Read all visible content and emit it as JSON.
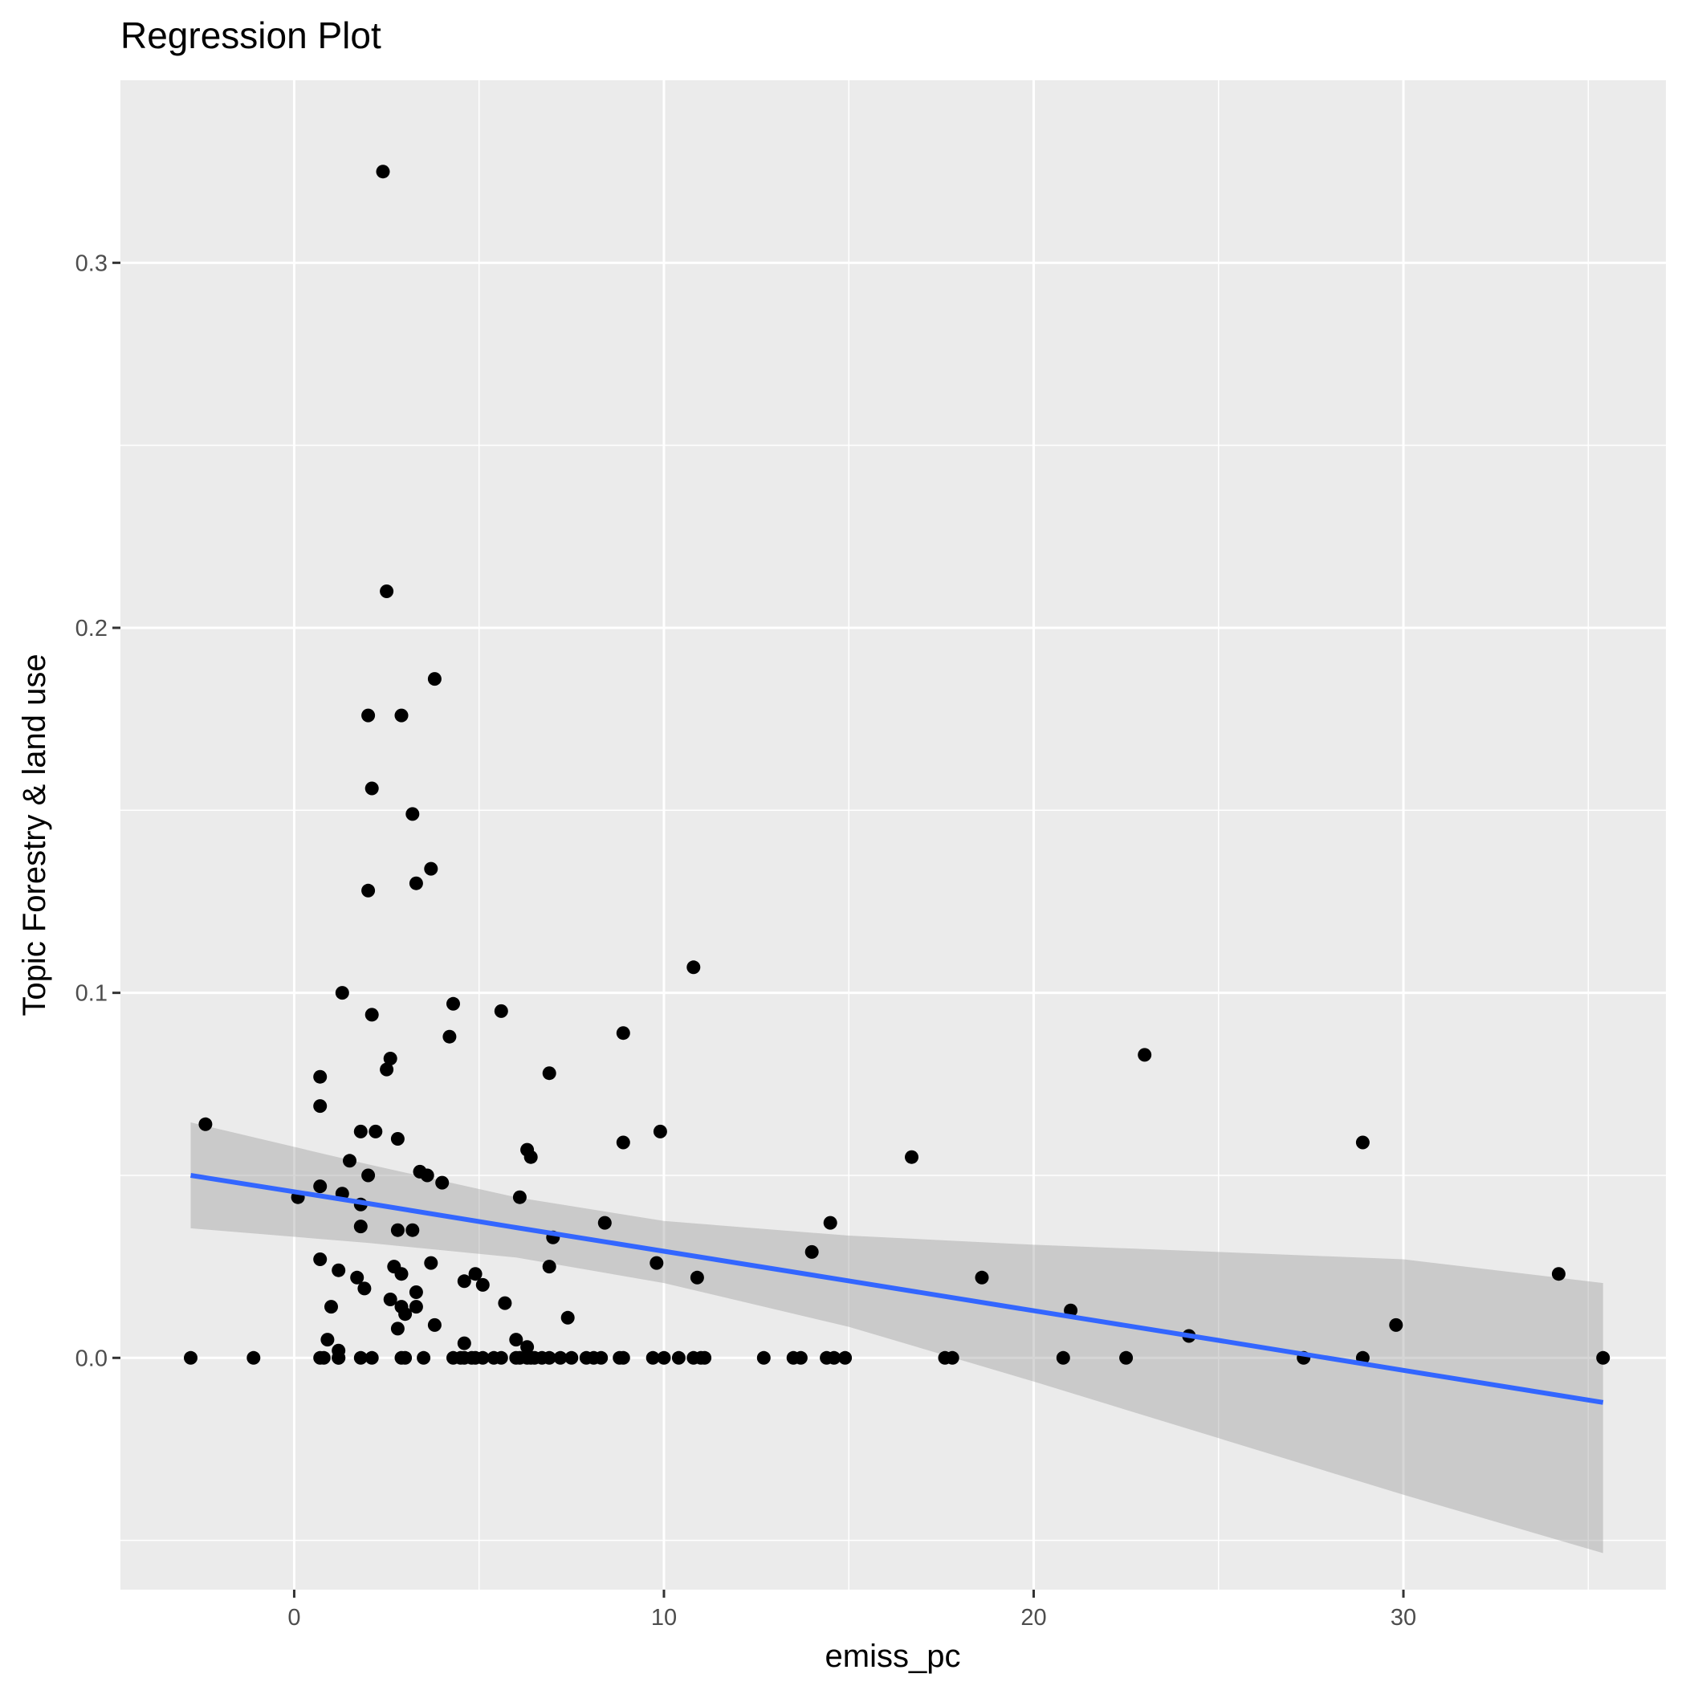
{
  "chart_data": {
    "type": "scatter",
    "title": "Regression Plot",
    "xlabel": "emiss_pc",
    "ylabel": "Topic Forestry & land use",
    "xlim": [
      -4.7,
      37.1
    ],
    "ylim": [
      -0.0635,
      0.35
    ],
    "x_ticks": [
      0,
      10,
      20,
      30
    ],
    "x_tick_labels": [
      "0",
      "10",
      "20",
      "30"
    ],
    "y_ticks": [
      0.0,
      0.1,
      0.2,
      0.3
    ],
    "y_tick_labels": [
      "0.0",
      "0.1",
      "0.2",
      "0.3"
    ],
    "x_minor_ticks": [
      -5,
      5,
      15,
      25,
      35
    ],
    "y_minor_ticks": [
      -0.05,
      0.05,
      0.15,
      0.25
    ],
    "grid": true,
    "background": "#ebebeb",
    "point_color": "#000000",
    "regression": {
      "color": "#3366ff",
      "band_color": "#999999",
      "x": [
        -2.8,
        2.0,
        6.0,
        10.0,
        15.0,
        20.0,
        25.0,
        30.0,
        35.4
      ],
      "y": [
        0.05,
        0.0423,
        0.0357,
        0.0292,
        0.0211,
        0.0129,
        0.0048,
        -0.0034,
        -0.0122
      ],
      "lower": [
        0.0355,
        0.0315,
        0.0275,
        0.0205,
        0.0085,
        -0.0065,
        -0.022,
        -0.0375,
        -0.0535
      ],
      "upper": [
        0.0645,
        0.053,
        0.044,
        0.0375,
        0.0335,
        0.031,
        0.029,
        0.027,
        0.0205
      ]
    },
    "series": [
      {
        "x": [
          -2.8,
          -1.1,
          0.7,
          0.8,
          1.2,
          1.2,
          1.8,
          2.1,
          2.9,
          3.0,
          3.5,
          4.3,
          4.5,
          4.6,
          4.8,
          4.9,
          5.1,
          5.4,
          5.6,
          6.0,
          6.1,
          6.3,
          6.4,
          6.5,
          6.7,
          6.9,
          7.2,
          7.5,
          7.9,
          8.1,
          8.3,
          8.8,
          8.9,
          9.7,
          10.0,
          10.4,
          10.8,
          11.0,
          11.1,
          12.7,
          13.5,
          13.7,
          14.4,
          14.6,
          14.9,
          17.6,
          17.8,
          20.8,
          22.5,
          27.3,
          28.9,
          35.4
        ],
        "y": [
          0,
          0,
          0,
          0,
          0,
          0,
          0,
          0,
          0,
          0,
          0,
          0,
          0,
          0,
          0,
          0,
          0,
          0,
          0,
          0,
          0,
          0,
          0,
          0,
          0,
          0,
          0,
          0,
          0,
          0,
          0,
          0,
          0,
          0,
          0,
          0,
          0,
          0,
          0,
          0,
          0,
          0,
          0,
          0,
          0,
          0,
          0,
          0,
          0,
          0,
          0,
          0
        ]
      },
      {
        "x": [
          2.4,
          2.5,
          3.8,
          2.0,
          2.9,
          2.1,
          3.2,
          3.7,
          2.0,
          3.3,
          1.3,
          10.8,
          4.3,
          2.1,
          5.6,
          4.2,
          8.9,
          2.6,
          2.5,
          0.7,
          6.9,
          0.7,
          -2.4,
          1.8,
          2.2,
          9.9,
          2.8,
          8.9,
          6.3,
          1.5,
          6.4,
          16.7,
          3.4,
          2.0,
          3.6,
          0.7,
          4.0,
          1.3,
          0.1,
          6.1,
          1.8,
          28.9,
          23.0,
          8.4,
          14.5,
          1.8,
          2.8,
          3.2,
          7.0,
          14.0,
          0.7,
          9.8,
          6.9,
          3.7,
          1.2,
          2.9,
          4.9,
          1.7,
          10.9,
          4.6,
          5.1,
          2.7,
          3.3,
          1.9,
          34.2,
          18.6,
          5.7,
          2.6,
          2.9,
          1.0,
          3.3,
          3.0,
          7.4,
          21.0,
          3.8,
          2.8,
          4.6,
          6.0,
          0.9,
          6.3,
          1.2,
          24.2,
          29.8
        ],
        "y": [
          0.325,
          0.21,
          0.186,
          0.176,
          0.176,
          0.156,
          0.149,
          0.134,
          0.128,
          0.13,
          0.1,
          0.107,
          0.097,
          0.094,
          0.095,
          0.088,
          0.089,
          0.082,
          0.079,
          0.077,
          0.078,
          0.069,
          0.064,
          0.062,
          0.062,
          0.062,
          0.06,
          0.059,
          0.057,
          0.054,
          0.055,
          0.055,
          0.051,
          0.05,
          0.05,
          0.047,
          0.048,
          0.045,
          0.044,
          0.044,
          0.042,
          0.059,
          0.083,
          0.037,
          0.037,
          0.036,
          0.035,
          0.035,
          0.033,
          0.029,
          0.027,
          0.026,
          0.025,
          0.026,
          0.024,
          0.023,
          0.023,
          0.022,
          0.022,
          0.021,
          0.02,
          0.025,
          0.018,
          0.019,
          0.023,
          0.022,
          0.015,
          0.016,
          0.014,
          0.014,
          0.014,
          0.012,
          0.011,
          0.013,
          0.009,
          0.008,
          0.004,
          0.005,
          0.005,
          0.003,
          0.002,
          0.006,
          0.009
        ]
      }
    ]
  }
}
